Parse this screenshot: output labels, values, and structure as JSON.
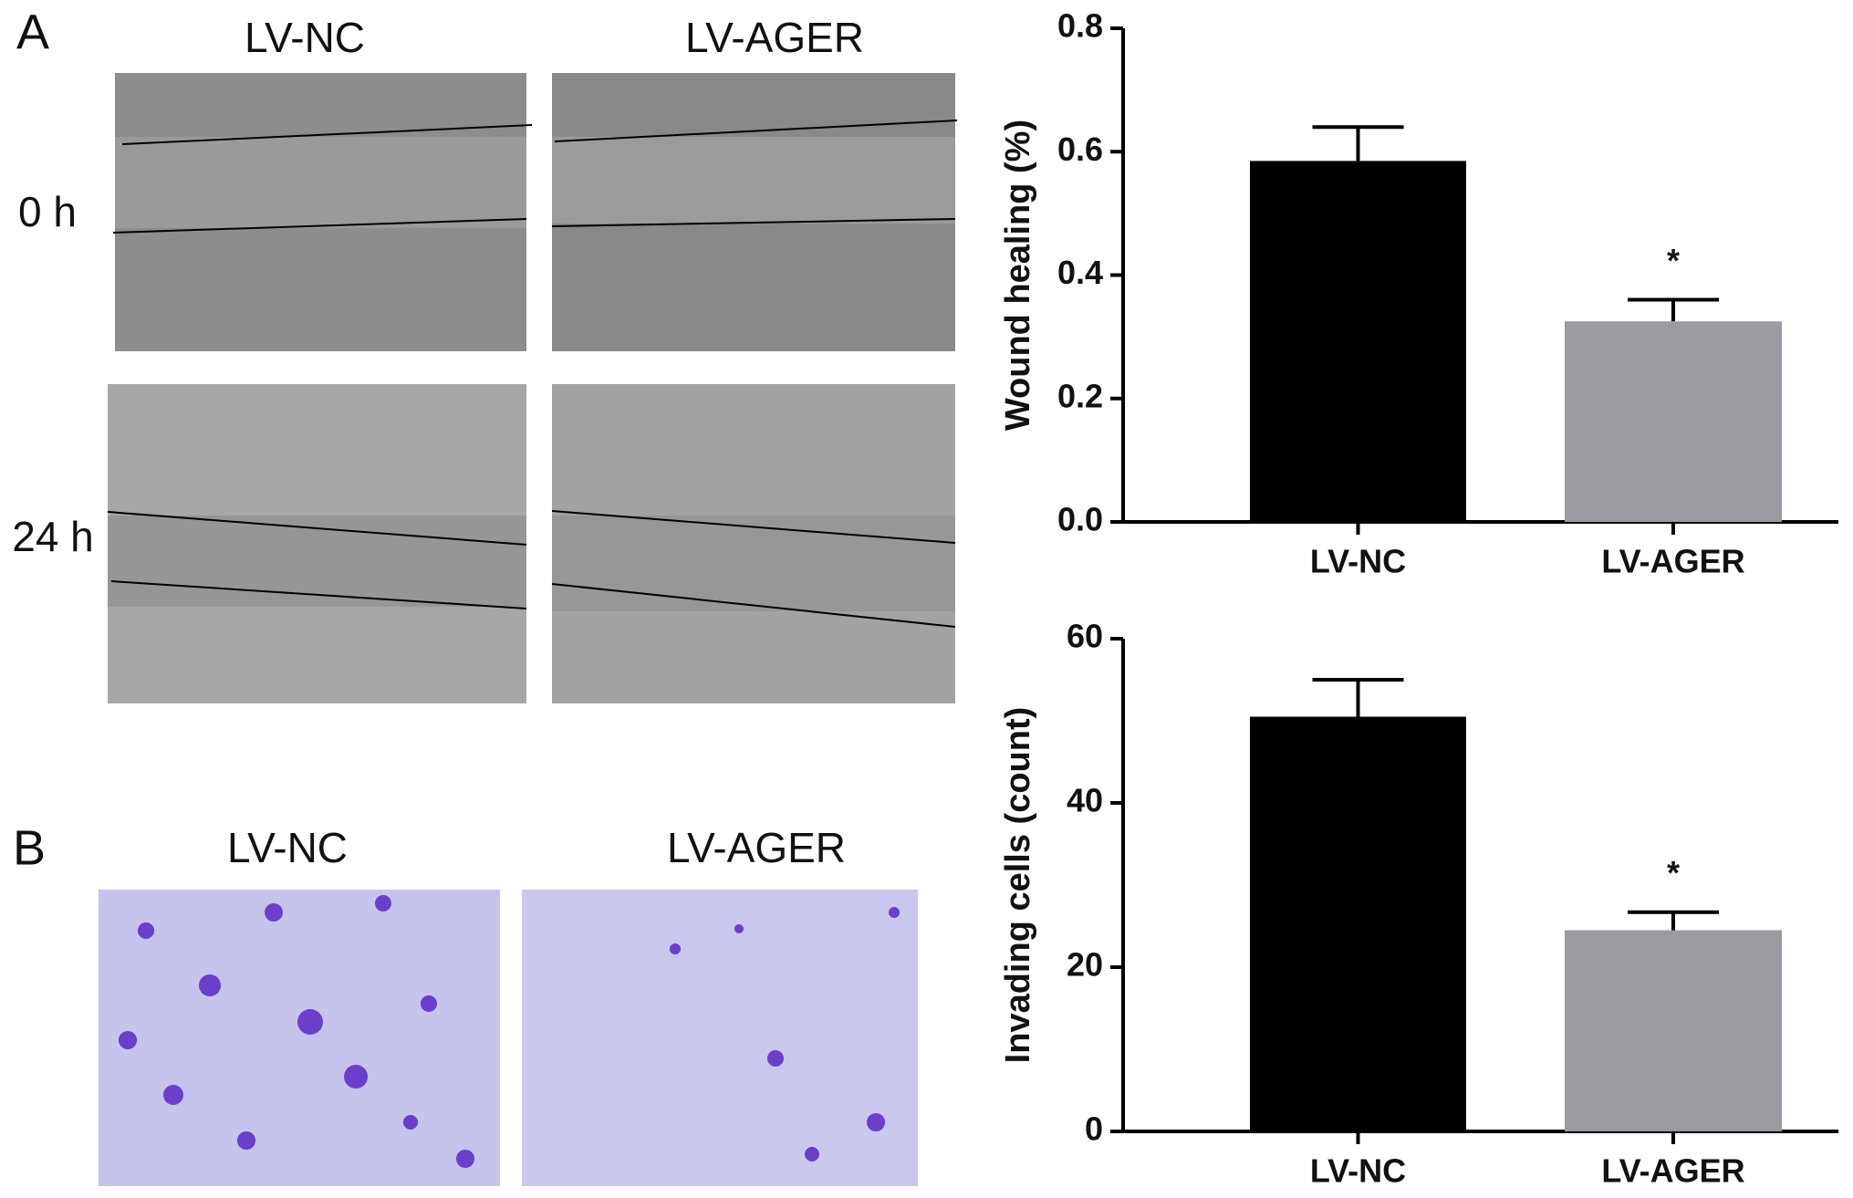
{
  "panel_a": {
    "label": "A",
    "columns": [
      "LV-NC",
      "LV-AGER"
    ],
    "rows": [
      "0 h",
      "24 h"
    ]
  },
  "panel_b": {
    "label": "B",
    "columns": [
      "LV-NC",
      "LV-AGER"
    ]
  },
  "chart_data": [
    {
      "type": "bar",
      "y_label": "Wound healing (%)",
      "categories": [
        "LV-NC",
        "LV-AGER"
      ],
      "values": [
        0.585,
        0.325
      ],
      "errors": [
        0.055,
        0.035
      ],
      "colors": [
        "#000000",
        "#9b9aa0"
      ],
      "annotation": "*",
      "ylim": [
        0,
        0.8
      ],
      "yticks": [
        {
          "value": 0,
          "label": "0.0"
        },
        0.2,
        0.4,
        0.6,
        0.8
      ]
    },
    {
      "type": "bar",
      "y_label": "Invading cells (count)",
      "categories": [
        "LV-NC",
        "LV-AGER"
      ],
      "values": [
        50.5,
        24.5
      ],
      "errors": [
        4.5,
        2.2
      ],
      "colors": [
        "#000000",
        "#9b9aa0"
      ],
      "annotation": "*",
      "ylim": [
        0,
        60
      ],
      "yticks": [
        0,
        20,
        40,
        60
      ]
    }
  ]
}
